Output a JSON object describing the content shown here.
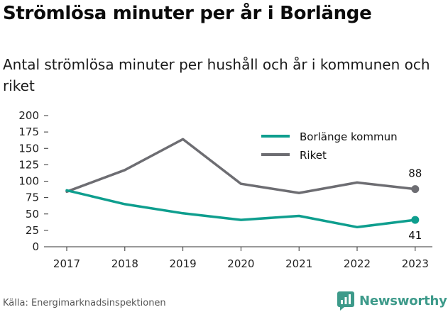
{
  "header": {
    "title": "Strömlösa minuter per år i Borlänge",
    "subtitle": "Antal strömlösa minuter per hushåll och år i kommunen och riket"
  },
  "footer": {
    "source": "Källa: Energimarknadsinspektionen",
    "brand": "Newsworthy",
    "brand_icon": "newsworthy-logo-icon"
  },
  "colors": {
    "borlange": "#0e9e8e",
    "riket": "#6d6d72",
    "brand": "#3d9a8a"
  },
  "chart_data": {
    "type": "line",
    "title": "Strömlösa minuter per år i Borlänge",
    "subtitle": "Antal strömlösa minuter per hushåll och år i kommunen och riket",
    "xlabel": "",
    "ylabel": "",
    "categories": [
      "2017",
      "2018",
      "2019",
      "2020",
      "2021",
      "2022",
      "2023"
    ],
    "yticks": [
      "0",
      "25",
      "50",
      "75",
      "100",
      "125",
      "150",
      "175",
      "200"
    ],
    "ylim": [
      0,
      200
    ],
    "grid": false,
    "legend_position": "top-right",
    "series": [
      {
        "name": "Borlänge kommun",
        "values": [
          86,
          65,
          51,
          41,
          47,
          30,
          41
        ],
        "color": "#0e9e8e",
        "end_label": "41"
      },
      {
        "name": "Riket",
        "values": [
          84,
          117,
          164,
          96,
          82,
          98,
          88
        ],
        "color": "#6d6d72",
        "end_label": "88"
      }
    ]
  }
}
